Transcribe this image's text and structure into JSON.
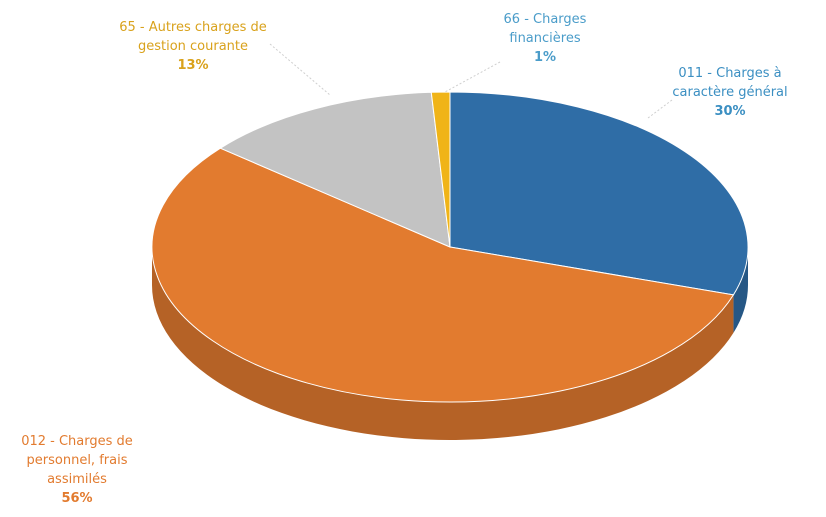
{
  "chart_data": {
    "type": "pie",
    "categories": [
      "011 - Charges à caractère général",
      "012 - Charges de personnel, frais assimilés",
      "65 - Autres charges de gestion courante",
      "66 - Charges financières"
    ],
    "values": [
      30,
      56,
      13,
      1
    ],
    "value_labels": [
      "30%",
      "56%",
      "13%",
      "1%"
    ],
    "colors": [
      "#2f6da6",
      "#e27b2f",
      "#c3c3c3",
      "#f0b418"
    ]
  }
}
